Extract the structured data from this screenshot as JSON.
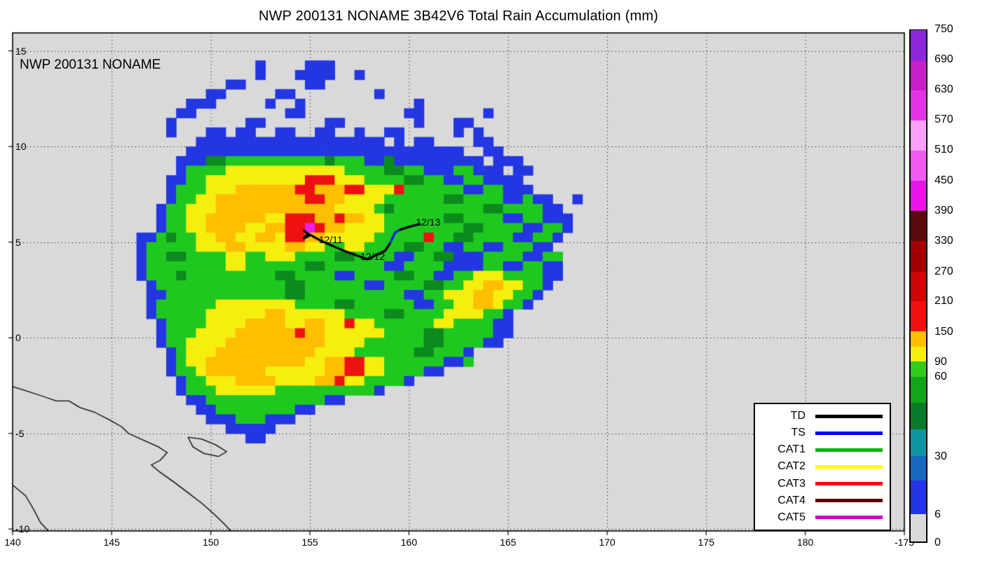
{
  "title": "NWP 200131 NONAME 3B42V6 Total Rain Accumulation (mm)",
  "map_label": "NWP 200131 NONAME",
  "chart_data": {
    "type": "heatmap",
    "description": "TRMM 3B42V6 total rain accumulation (mm) for tropical system NWP 200131 NONAME over the western Pacific, with storm track overlay and saffir-simpson track legend",
    "lon_range": [
      140,
      185
    ],
    "lat_range": [
      -10.1,
      15.94
    ],
    "grid_interval_deg": 5,
    "grid_on": true,
    "plot_background": "#d9d9d9",
    "x_ticks": [
      {
        "label": "140",
        "lon": 140
      },
      {
        "label": "145",
        "lon": 145
      },
      {
        "label": "150",
        "lon": 150
      },
      {
        "label": "155",
        "lon": 155
      },
      {
        "label": "160",
        "lon": 160
      },
      {
        "label": "165",
        "lon": 165
      },
      {
        "label": "170",
        "lon": 170
      },
      {
        "label": "175",
        "lon": 175
      },
      {
        "label": "180",
        "lon": 180
      },
      {
        "label": "-175",
        "lon": 185
      }
    ],
    "y_ticks": [
      {
        "label": "15",
        "lat": 15
      },
      {
        "label": "10",
        "lat": 10
      },
      {
        "label": "5",
        "lat": 5
      },
      {
        "label": "0",
        "lat": 0
      },
      {
        "label": "-5",
        "lat": -5
      },
      {
        "label": "-10",
        "lat": -10
      }
    ],
    "rain_grid": {
      "lon_start": 146.0,
      "lat_start": 14.25,
      "dlon": 0.5,
      "dlat": 0.5,
      "colors": {
        "b": "#2336e2",
        "d": "#0c8a1e",
        "g": "#1fc81f",
        "y": "#f6ee0c",
        "o": "#ffbe00",
        "r": "#ee1111",
        "m": "#e820e8"
      },
      "approx_mm": {
        "b": "6-30",
        "d": "30-60",
        "g": "60-90",
        "y": "90-120",
        "o": "120-150",
        "r": "150-330",
        "m": "390+"
      },
      "rows": [
        ".............b....bbb.........................",
        ".............b...bbbb..b......................",
        "..........bb......bb..........................",
        "........bb.....bb........b....................",
        "......bbb.....b..b...........b................",
        ".....bb.........bb..........bb......b.........",
        "....b.......bb......bb.......b...bb...........",
        "....b...bb.bb..bb..bb..b..bb.....b.b..........",
        ".......bbbbbbbbbbbbbbbbbbb.b.bb....bb.........",
        "......bbbbbbbbbbbbbbbbbbbbbbbbbbbb..bb........",
        ".....bbbddggggggggggdgggbbdbbbbbbbbb.bbb......",
        ".....bggggyyyyyyyyyyyyggggddggbbbggbbb.bb.....",
        "....bbggyyyyyyyyyyrrryyyggggddggbbggbbbb......",
        "....bgggyyyoooooorrooorryyyrggggggbbggbbb.....",
        "....bggyyooooooooorrooyyyyggggggddggggbbgbb..b",
        "...bggyyyooooooooooooyyyygdgggggggggddggggbb..",
        "...bggyyooooooyyrrroorooyyggggggddggggbbggbbb.",
        "...bggyyooooyyoorrmrooyyyyggggggggddggggbbggb.",
        ".bbgdggyyooyyooyrrooyyyyygggggrggddggggbbggb..",
        ".bgggggyyyooyyyyooyyggyyggggddggbbggbbgggbb...",
        ".bggddggggyyggyyyggggddggggbbggddbbbggggbbgg..",
        ".bggggggggyyggggggddggggggbbggggbbbbggbbggbb..",
        ".bgggdgggggggggddggggbbggggddggbbggyyyggggbb..",
        "..bgggggggggggggddggggggbbggggddggyyooyyggb...",
        "..bbggggggggggggddggggggggggbbggyyyooyyggb....",
        "..bggggggyyyyyyyyggggddggggggbbggyyooyggb.....",
        "..bgggggyyyyyyooyyyyyyggggddggggyyyyggb.......",
        "...bggggyyyyooooyyooyyryyggggggyyggggbb.......",
        "...bgggyyyyoooooorooyyyyyyggggddgggggbb.......",
        "...bggyyyyooooooooooyyyyggggggddggggbb........",
        "....bgyyyooooooooooyyyyggggggddgggb...........",
        "....bgyyooooooooooyyoorryyggggggbbg...........",
        "....bggyooooooyyyyyyoorryyggggbb..............",
        ".....bggyyyooooyyyyooryyggggb.................",
        ".....bgggyyyyyyggggggggggb....................",
        "......bbggggggggggggbb........................",
        ".......bbggggggggbb...........................",
        "........bbbgggbbb.............................",
        "..........bbbbb...............................",
        "............bb................................"
      ]
    },
    "track": {
      "segments": [
        {
          "phase": "TD",
          "color": "#000000",
          "points": [
            [
              154.7,
              5.6
            ],
            [
              155.0,
              5.35
            ],
            [
              154.7,
              5.2
            ],
            [
              154.9,
              5.45
            ],
            [
              155.5,
              5.1
            ],
            [
              156.6,
              4.6
            ],
            [
              157.9,
              4.1
            ],
            [
              158.8,
              4.55
            ],
            [
              159.05,
              4.95
            ]
          ]
        },
        {
          "phase": "TS",
          "color": "#0020e0",
          "points": [
            [
              159.05,
              4.95
            ],
            [
              159.3,
              5.5
            ],
            [
              159.55,
              5.65
            ]
          ]
        },
        {
          "phase": "TD",
          "color": "#000000",
          "points": [
            [
              159.55,
              5.65
            ],
            [
              160.0,
              5.8
            ],
            [
              160.55,
              5.95
            ]
          ]
        }
      ],
      "labels": [
        {
          "text": "12/11",
          "lon": 155.45,
          "lat": 5.15
        },
        {
          "text": "12/12",
          "lon": 157.55,
          "lat": 4.25
        },
        {
          "text": "12/13",
          "lon": 160.35,
          "lat": 6.05
        }
      ]
    },
    "coastlines": [
      [
        [
          140,
          -2.55
        ],
        [
          140.7,
          -2.78
        ],
        [
          141.5,
          -3.05
        ],
        [
          142.2,
          -3.3
        ],
        [
          142.85,
          -3.3
        ],
        [
          143.4,
          -3.65
        ],
        [
          144.15,
          -3.9
        ],
        [
          144.9,
          -4.3
        ],
        [
          145.5,
          -4.65
        ],
        [
          145.85,
          -5.0
        ],
        [
          146.6,
          -5.35
        ],
        [
          147.35,
          -5.7
        ],
        [
          147.8,
          -6.0
        ],
        [
          147.45,
          -6.4
        ],
        [
          147.0,
          -6.65
        ],
        [
          147.4,
          -7.0
        ],
        [
          148.15,
          -7.55
        ],
        [
          148.85,
          -8.1
        ],
        [
          149.55,
          -8.65
        ],
        [
          150.15,
          -9.2
        ],
        [
          150.7,
          -9.75
        ],
        [
          151.1,
          -10.2
        ]
      ],
      [
        [
          140,
          -7.7
        ],
        [
          140.65,
          -8.25
        ],
        [
          141.05,
          -8.95
        ],
        [
          141.4,
          -9.65
        ],
        [
          141.9,
          -10.2
        ]
      ],
      [
        [
          148.85,
          -5.2
        ],
        [
          149.55,
          -5.3
        ],
        [
          150.25,
          -5.6
        ],
        [
          150.8,
          -5.95
        ],
        [
          150.4,
          -6.2
        ],
        [
          149.65,
          -6.05
        ],
        [
          149.1,
          -5.7
        ],
        [
          148.85,
          -5.2
        ]
      ]
    ],
    "legend": {
      "entries": [
        {
          "label": "TD",
          "color": "#000000"
        },
        {
          "label": "TS",
          "color": "#0000ee"
        },
        {
          "label": "CAT1",
          "color": "#00b400"
        },
        {
          "label": "CAT2",
          "color": "#ffff00"
        },
        {
          "label": "CAT3",
          "color": "#ff0000"
        },
        {
          "label": "CAT4",
          "color": "#5a0000"
        },
        {
          "label": "CAT5",
          "color": "#cc00cc"
        }
      ]
    },
    "colorbar": {
      "unit": "mm",
      "labels": [
        {
          "value": "0",
          "frac": 0.0
        },
        {
          "value": "6",
          "frac": 0.054
        },
        {
          "value": "30",
          "frac": 0.168
        },
        {
          "value": "60",
          "frac": 0.323
        },
        {
          "value": "90",
          "frac": 0.352
        },
        {
          "value": "150",
          "frac": 0.411
        },
        {
          "value": "210",
          "frac": 0.47
        },
        {
          "value": "270",
          "frac": 0.528
        },
        {
          "value": "330",
          "frac": 0.588
        },
        {
          "value": "390",
          "frac": 0.647
        },
        {
          "value": "450",
          "frac": 0.706
        },
        {
          "value": "510",
          "frac": 0.765
        },
        {
          "value": "570",
          "frac": 0.824
        },
        {
          "value": "630",
          "frac": 0.883
        },
        {
          "value": "690",
          "frac": 0.941
        },
        {
          "value": "750",
          "frac": 1.0
        }
      ],
      "segments": [
        {
          "from": 0.0,
          "to": 0.054,
          "color": "#d9d9d9"
        },
        {
          "from": 0.054,
          "to": 0.12,
          "color": "#2336e2"
        },
        {
          "from": 0.12,
          "to": 0.168,
          "color": "#1668c0"
        },
        {
          "from": 0.168,
          "to": 0.22,
          "color": "#0d96a0"
        },
        {
          "from": 0.22,
          "to": 0.272,
          "color": "#0b7a28"
        },
        {
          "from": 0.272,
          "to": 0.323,
          "color": "#12a51a"
        },
        {
          "from": 0.323,
          "to": 0.352,
          "color": "#32cc19"
        },
        {
          "from": 0.352,
          "to": 0.382,
          "color": "#f6ee0c"
        },
        {
          "from": 0.382,
          "to": 0.411,
          "color": "#ffbe00"
        },
        {
          "from": 0.411,
          "to": 0.47,
          "color": "#f01010"
        },
        {
          "from": 0.47,
          "to": 0.528,
          "color": "#cc0505"
        },
        {
          "from": 0.528,
          "to": 0.588,
          "color": "#a00000"
        },
        {
          "from": 0.588,
          "to": 0.647,
          "color": "#5a0a0a"
        },
        {
          "from": 0.647,
          "to": 0.706,
          "color": "#e614e6"
        },
        {
          "from": 0.706,
          "to": 0.765,
          "color": "#f05af0"
        },
        {
          "from": 0.765,
          "to": 0.824,
          "color": "#f9a0f9"
        },
        {
          "from": 0.824,
          "to": 0.883,
          "color": "#e632e6"
        },
        {
          "from": 0.883,
          "to": 0.941,
          "color": "#c81ec8"
        },
        {
          "from": 0.941,
          "to": 1.0,
          "color": "#8c28dc"
        }
      ]
    }
  }
}
